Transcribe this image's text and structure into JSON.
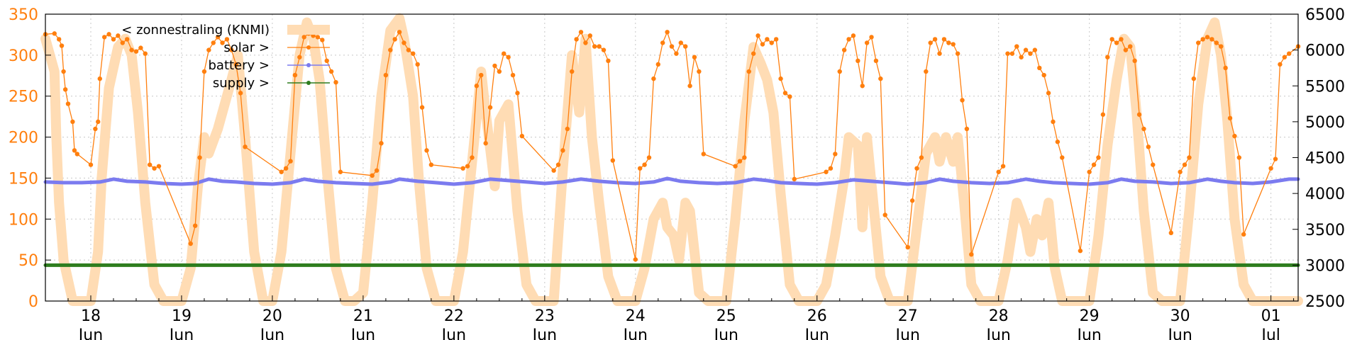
{
  "chart_data": {
    "type": "line",
    "x_unit": "days",
    "x_range": [
      17.5,
      31.3
    ],
    "left_axis": {
      "ylim": [
        0,
        350
      ],
      "ticks": [
        0,
        50,
        100,
        150,
        200,
        250,
        300,
        350
      ],
      "color": "#ff7f0e"
    },
    "right_axis": {
      "ylim": [
        2500,
        6500
      ],
      "ticks": [
        2500,
        3000,
        3500,
        4000,
        4500,
        5000,
        5500,
        6000,
        6500
      ],
      "color": "#000000"
    },
    "x_ticks": [
      {
        "x": 18,
        "day": "18",
        "month": "Jun"
      },
      {
        "x": 19,
        "day": "19",
        "month": "Jun"
      },
      {
        "x": 20,
        "day": "20",
        "month": "Jun"
      },
      {
        "x": 21,
        "day": "21",
        "month": "Jun"
      },
      {
        "x": 22,
        "day": "22",
        "month": "Jun"
      },
      {
        "x": 23,
        "day": "23",
        "month": "Jun"
      },
      {
        "x": 24,
        "day": "24",
        "month": "Jun"
      },
      {
        "x": 25,
        "day": "25",
        "month": "Jun"
      },
      {
        "x": 26,
        "day": "26",
        "month": "Jun"
      },
      {
        "x": 27,
        "day": "27",
        "month": "Jun"
      },
      {
        "x": 28,
        "day": "28",
        "month": "Jun"
      },
      {
        "x": 29,
        "day": "29",
        "month": "Jun"
      },
      {
        "x": 30,
        "day": "30",
        "month": "Jun"
      },
      {
        "x": 31,
        "day": "01",
        "month": "Jul"
      }
    ],
    "grid": true,
    "legend_position": "top-left",
    "series": [
      {
        "name": "< zonnestraling (KNMI)",
        "axis": "left",
        "color": "#ffdcb4",
        "style": "thick-line",
        "x": [
          17.5,
          17.55,
          17.6,
          17.62,
          17.65,
          17.7,
          17.8,
          17.9,
          18.0,
          18.08,
          18.12,
          18.2,
          18.3,
          18.38,
          18.45,
          18.52,
          18.6,
          18.7,
          18.8,
          18.9,
          19.0,
          19.1,
          19.18,
          19.25,
          19.3,
          19.4,
          19.5,
          19.55,
          19.62,
          19.7,
          19.8,
          19.9,
          20.0,
          20.1,
          20.2,
          20.3,
          20.38,
          20.45,
          20.52,
          20.6,
          20.7,
          20.8,
          20.9,
          21.0,
          21.1,
          21.2,
          21.3,
          21.4,
          21.45,
          21.55,
          21.62,
          21.7,
          21.8,
          21.9,
          22.0,
          22.1,
          22.2,
          22.3,
          22.35,
          22.45,
          22.5,
          22.6,
          22.7,
          22.8,
          22.9,
          23.0,
          23.1,
          23.2,
          23.3,
          23.38,
          23.45,
          23.52,
          23.6,
          23.7,
          23.8,
          23.9,
          24.0,
          24.1,
          24.2,
          24.3,
          24.35,
          24.42,
          24.48,
          24.55,
          24.6,
          24.65,
          24.7,
          24.8,
          24.9,
          25.0,
          25.1,
          25.2,
          25.3,
          25.38,
          25.45,
          25.52,
          25.6,
          25.7,
          25.8,
          25.9,
          26.0,
          26.1,
          26.2,
          26.3,
          26.35,
          26.45,
          26.5,
          26.55,
          26.62,
          26.7,
          26.8,
          26.9,
          27.0,
          27.1,
          27.2,
          27.3,
          27.35,
          27.42,
          27.5,
          27.55,
          27.62,
          27.7,
          27.8,
          27.9,
          28.0,
          28.1,
          28.2,
          28.3,
          28.35,
          28.42,
          28.48,
          28.55,
          28.62,
          28.7,
          28.8,
          28.9,
          29.0,
          29.1,
          29.2,
          29.3,
          29.38,
          29.45,
          29.52,
          29.6,
          29.7,
          29.8,
          29.9,
          30.0,
          30.1,
          30.2,
          30.3,
          30.38,
          30.45,
          30.52,
          30.6,
          30.7,
          30.8,
          30.9,
          31.0,
          31.1,
          31.3
        ],
        "y": [
          320,
          300,
          280,
          200,
          120,
          50,
          0,
          0,
          0,
          60,
          150,
          260,
          310,
          320,
          300,
          230,
          120,
          20,
          0,
          0,
          0,
          40,
          140,
          200,
          180,
          210,
          250,
          270,
          300,
          200,
          60,
          0,
          0,
          60,
          180,
          300,
          340,
          320,
          270,
          160,
          40,
          0,
          0,
          10,
          120,
          250,
          330,
          345,
          320,
          250,
          140,
          40,
          0,
          0,
          0,
          60,
          170,
          280,
          230,
          140,
          220,
          240,
          110,
          20,
          0,
          0,
          0,
          160,
          300,
          230,
          320,
          200,
          120,
          30,
          0,
          0,
          0,
          40,
          100,
          120,
          90,
          80,
          50,
          120,
          110,
          60,
          10,
          0,
          0,
          0,
          100,
          220,
          310,
          290,
          270,
          230,
          130,
          20,
          0,
          0,
          0,
          20,
          80,
          150,
          200,
          190,
          90,
          200,
          120,
          30,
          0,
          0,
          0,
          90,
          180,
          200,
          170,
          200,
          170,
          200,
          120,
          20,
          0,
          0,
          0,
          50,
          120,
          90,
          60,
          100,
          80,
          120,
          40,
          0,
          0,
          0,
          0,
          80,
          190,
          270,
          320,
          310,
          230,
          110,
          10,
          0,
          0,
          0,
          110,
          240,
          320,
          340,
          300,
          220,
          100,
          20,
          0,
          0,
          0,
          0,
          0
        ]
      },
      {
        "name": "solar >",
        "axis": "right",
        "color": "#ff7f0e",
        "style": "line-points",
        "x": [
          17.5,
          17.6,
          17.65,
          17.68,
          17.7,
          17.72,
          17.75,
          17.8,
          17.82,
          17.85,
          18.0,
          18.05,
          18.08,
          18.1,
          18.15,
          18.2,
          18.25,
          18.3,
          18.35,
          18.4,
          18.45,
          18.5,
          18.55,
          18.6,
          18.65,
          18.7,
          18.75,
          19.1,
          19.15,
          19.2,
          19.25,
          19.3,
          19.35,
          19.4,
          19.45,
          19.5,
          19.55,
          19.6,
          19.65,
          19.7,
          20.1,
          20.15,
          20.2,
          20.25,
          20.3,
          20.35,
          20.4,
          20.45,
          20.5,
          20.55,
          20.6,
          20.65,
          20.7,
          20.75,
          21.1,
          21.15,
          21.2,
          21.25,
          21.3,
          21.35,
          21.4,
          21.45,
          21.5,
          21.55,
          21.6,
          21.65,
          21.7,
          21.75,
          22.1,
          22.15,
          22.2,
          22.25,
          22.3,
          22.35,
          22.4,
          22.45,
          22.5,
          22.55,
          22.6,
          22.65,
          22.7,
          22.75,
          23.1,
          23.15,
          23.2,
          23.25,
          23.3,
          23.35,
          23.4,
          23.45,
          23.5,
          23.55,
          23.6,
          23.65,
          23.7,
          23.75,
          24.0,
          24.05,
          24.1,
          24.15,
          24.2,
          24.25,
          24.3,
          24.35,
          24.4,
          24.45,
          24.5,
          24.55,
          24.6,
          24.65,
          24.7,
          24.75,
          25.1,
          25.15,
          25.2,
          25.25,
          25.3,
          25.35,
          25.4,
          25.45,
          25.5,
          25.55,
          25.6,
          25.65,
          25.7,
          25.75,
          26.1,
          26.15,
          26.2,
          26.25,
          26.3,
          26.35,
          26.4,
          26.45,
          26.5,
          26.55,
          26.6,
          26.65,
          26.7,
          26.75,
          27.0,
          27.05,
          27.1,
          27.15,
          27.2,
          27.25,
          27.3,
          27.35,
          27.4,
          27.45,
          27.5,
          27.55,
          27.6,
          27.65,
          27.7,
          28.0,
          28.05,
          28.1,
          28.15,
          28.2,
          28.25,
          28.3,
          28.35,
          28.4,
          28.45,
          28.5,
          28.55,
          28.6,
          28.65,
          28.7,
          28.9,
          29.0,
          29.05,
          29.1,
          29.15,
          29.2,
          29.25,
          29.3,
          29.35,
          29.4,
          29.45,
          29.5,
          29.55,
          29.6,
          29.65,
          29.7,
          29.9,
          30.0,
          30.05,
          30.1,
          30.15,
          30.2,
          30.25,
          30.3,
          30.35,
          30.4,
          30.45,
          30.5,
          30.55,
          30.6,
          30.65,
          30.7,
          31.0,
          31.05,
          31.1,
          31.15,
          31.2,
          31.3
        ],
        "y": [
          6220,
          6230,
          6150,
          6060,
          5700,
          5450,
          5250,
          5000,
          4600,
          4550,
          4400,
          4900,
          5000,
          5600,
          6180,
          6220,
          6150,
          6200,
          6100,
          6150,
          6000,
          5980,
          6030,
          5950,
          4400,
          4350,
          4380,
          3300,
          3550,
          4500,
          5700,
          6000,
          6100,
          6180,
          6100,
          6150,
          6000,
          5800,
          5400,
          4650,
          4300,
          4350,
          4450,
          5650,
          5900,
          6180,
          6230,
          6200,
          6180,
          6140,
          5850,
          5700,
          5550,
          4300,
          4250,
          4320,
          4700,
          5650,
          6000,
          6150,
          6250,
          6100,
          6000,
          5950,
          5800,
          5200,
          4600,
          4400,
          4350,
          4380,
          4500,
          5500,
          5650,
          4700,
          5200,
          5780,
          5700,
          5950,
          5900,
          5650,
          5400,
          4800,
          4320,
          4400,
          4600,
          4900,
          5700,
          6150,
          6250,
          6100,
          6200,
          6050,
          6050,
          6000,
          5850,
          4460,
          3080,
          4350,
          4400,
          4500,
          5600,
          5800,
          6100,
          6250,
          6050,
          5950,
          6100,
          6050,
          5500,
          5900,
          5700,
          4550,
          4380,
          4450,
          4500,
          5700,
          5950,
          6200,
          6080,
          6150,
          6100,
          6150,
          5600,
          5400,
          5350,
          4200,
          4300,
          4350,
          4550,
          5700,
          6000,
          6150,
          6200,
          5850,
          5500,
          6100,
          6180,
          5850,
          5600,
          3700,
          3250,
          3900,
          4350,
          4500,
          5700,
          6100,
          6150,
          5950,
          6150,
          6100,
          6080,
          5950,
          5300,
          4900,
          3150,
          4300,
          4380,
          5950,
          5950,
          6050,
          5900,
          6000,
          5950,
          6000,
          5750,
          5650,
          5400,
          5000,
          4720,
          4500,
          3200,
          4300,
          4400,
          4500,
          5100,
          5900,
          6150,
          6100,
          6150,
          6000,
          6050,
          5850,
          5100,
          4900,
          4650,
          4400,
          3450,
          4300,
          4400,
          4500,
          5600,
          6100,
          6150,
          6180,
          6150,
          6100,
          6050,
          5750,
          5050,
          4800,
          4500,
          3430,
          4350,
          4480,
          5800,
          5900,
          5950,
          6050
        ]
      },
      {
        "name": "battery >",
        "axis": "right",
        "color": "#7b7bef",
        "style": "thick-line",
        "x": [
          17.5,
          17.7,
          17.9,
          18.1,
          18.25,
          18.4,
          18.6,
          18.8,
          19.0,
          19.15,
          19.3,
          19.45,
          19.6,
          19.8,
          20.0,
          20.2,
          20.35,
          20.5,
          20.7,
          20.9,
          21.1,
          21.3,
          21.4,
          21.6,
          21.8,
          22.0,
          22.2,
          22.4,
          22.6,
          22.8,
          23.0,
          23.2,
          23.4,
          23.6,
          23.8,
          24.0,
          24.2,
          24.35,
          24.5,
          24.7,
          24.9,
          25.1,
          25.3,
          25.45,
          25.6,
          25.8,
          26.0,
          26.2,
          26.4,
          26.6,
          26.8,
          27.0,
          27.2,
          27.35,
          27.5,
          27.7,
          27.9,
          28.1,
          28.3,
          28.45,
          28.6,
          28.8,
          29.0,
          29.2,
          29.35,
          29.5,
          29.7,
          29.9,
          30.1,
          30.3,
          30.45,
          30.6,
          30.8,
          31.0,
          31.2,
          31.3
        ],
        "y": [
          4160,
          4150,
          4150,
          4160,
          4200,
          4170,
          4160,
          4140,
          4130,
          4140,
          4200,
          4170,
          4160,
          4140,
          4130,
          4150,
          4200,
          4170,
          4150,
          4140,
          4130,
          4160,
          4200,
          4170,
          4150,
          4130,
          4150,
          4200,
          4180,
          4160,
          4140,
          4160,
          4200,
          4170,
          4150,
          4140,
          4160,
          4210,
          4170,
          4150,
          4140,
          4150,
          4200,
          4180,
          4150,
          4140,
          4130,
          4150,
          4190,
          4170,
          4150,
          4130,
          4150,
          4200,
          4170,
          4150,
          4140,
          4150,
          4200,
          4170,
          4150,
          4140,
          4130,
          4150,
          4200,
          4170,
          4160,
          4140,
          4150,
          4200,
          4170,
          4150,
          4140,
          4160,
          4200,
          4200
        ]
      },
      {
        "name": "supply >",
        "axis": "right",
        "color": "#2e7d1e",
        "style": "thick-line",
        "x": [
          17.5,
          31.3
        ],
        "y": [
          3000,
          3000
        ]
      }
    ]
  }
}
